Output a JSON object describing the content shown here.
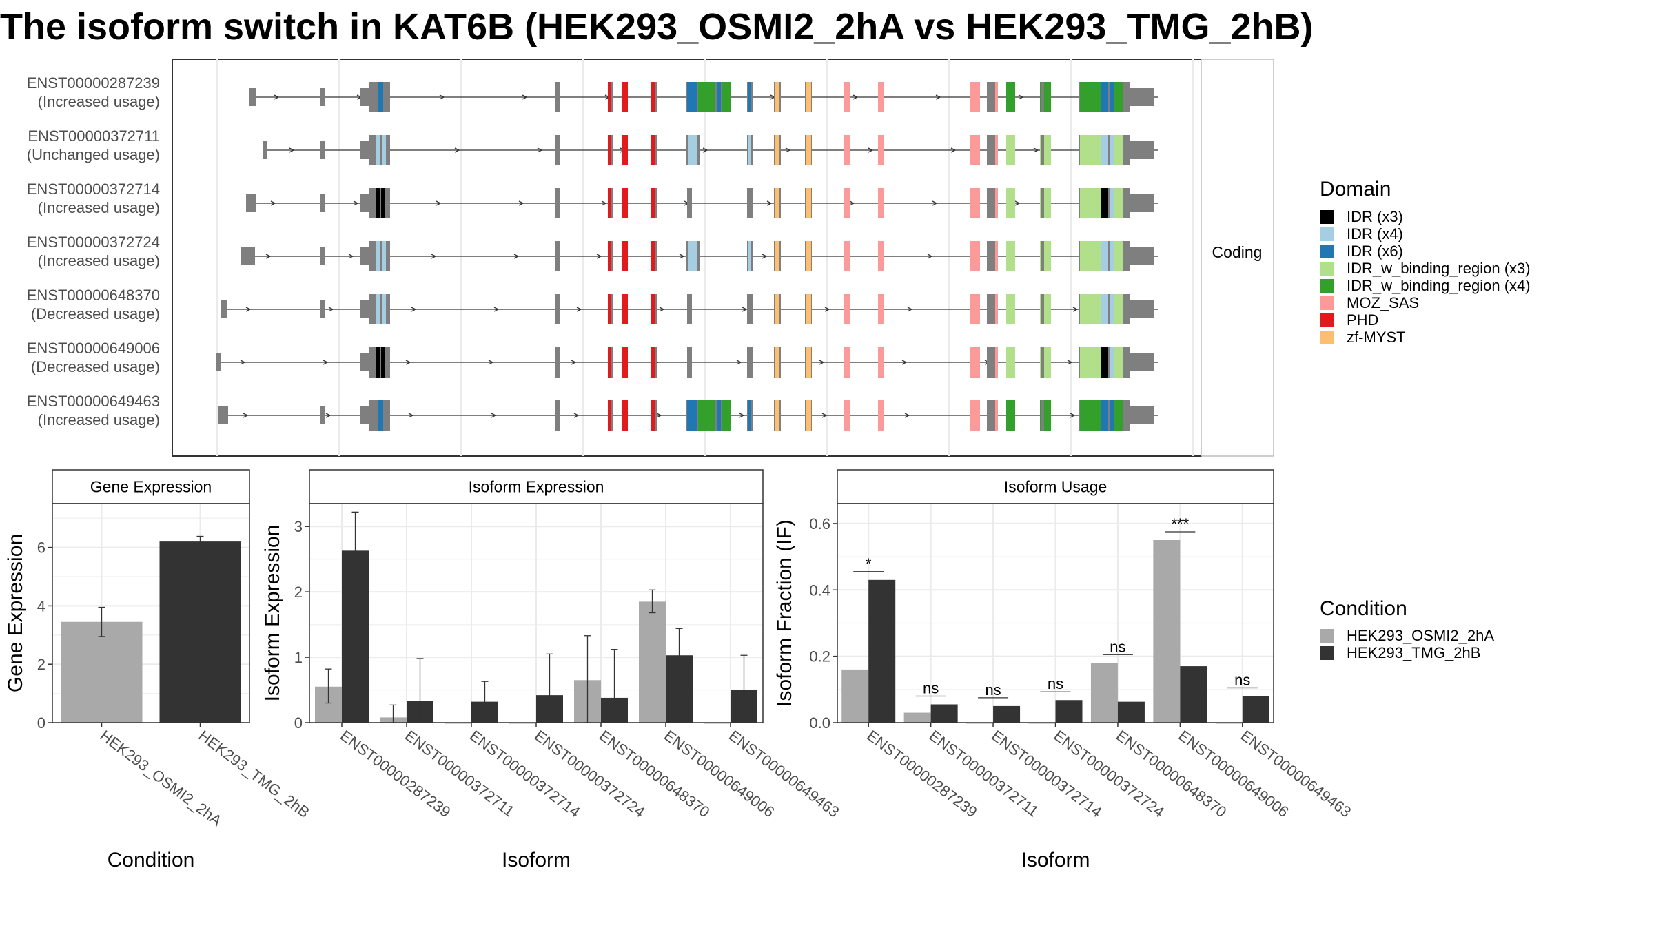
{
  "title": "The isoform switch in KAT6B (HEK293_OSMI2_2hA vs HEK293_TMG_2hB)",
  "structure": {
    "facet_label": "Coding",
    "isoforms": [
      {
        "id": "ENST00000287239",
        "status": "(Increased usage)"
      },
      {
        "id": "ENST00000372711",
        "status": "(Unchanged usage)"
      },
      {
        "id": "ENST00000372714",
        "status": "(Increased usage)"
      },
      {
        "id": "ENST00000372724",
        "status": "(Increased usage)"
      },
      {
        "id": "ENST00000648370",
        "status": "(Decreased usage)"
      },
      {
        "id": "ENST00000649006",
        "status": "(Decreased usage)"
      },
      {
        "id": "ENST00000649463",
        "status": "(Increased usage)"
      }
    ]
  },
  "domain_legend": {
    "title": "Domain",
    "items": [
      {
        "label": "IDR (x3)",
        "color": "#000000"
      },
      {
        "label": "IDR (x4)",
        "color": "#a6cee3"
      },
      {
        "label": "IDR (x6)",
        "color": "#1f78b4"
      },
      {
        "label": "IDR_w_binding_region (x3)",
        "color": "#b2df8a"
      },
      {
        "label": "IDR_w_binding_region (x4)",
        "color": "#33a02c"
      },
      {
        "label": "MOZ_SAS",
        "color": "#fb9a99"
      },
      {
        "label": "PHD",
        "color": "#e31a1c"
      },
      {
        "label": "zf-MYST",
        "color": "#fdbf6f"
      }
    ]
  },
  "condition_legend": {
    "title": "Condition",
    "items": [
      {
        "label": "HEK293_OSMI2_2hA",
        "color": "#a9a9a9"
      },
      {
        "label": "HEK293_TMG_2hB",
        "color": "#333333"
      }
    ]
  },
  "chart_data": [
    {
      "type": "bar",
      "title": "Gene Expression",
      "xlabel": "Condition",
      "ylabel": "Gene Expression",
      "ylim": [
        0,
        7.5
      ],
      "yticks": [
        0,
        2,
        4,
        6
      ],
      "categories": [
        "HEK293_OSMI2_2hA",
        "HEK293_TMG_2hB"
      ],
      "values": [
        3.45,
        6.2
      ],
      "error_low": [
        2.95,
        6.05
      ],
      "error_high": [
        3.95,
        6.38
      ]
    },
    {
      "type": "bar",
      "title": "Isoform Expression",
      "xlabel": "Isoform",
      "ylabel": "Isoform Expression",
      "ylim": [
        0,
        3.35
      ],
      "yticks": [
        0,
        1,
        2,
        3
      ],
      "categories": [
        "ENST00000287239",
        "ENST00000372711",
        "ENST00000372714",
        "ENST00000372724",
        "ENST00000648370",
        "ENST00000649006",
        "ENST00000649463"
      ],
      "series": [
        {
          "name": "HEK293_OSMI2_2hA",
          "values": [
            0.55,
            0.08,
            0,
            0,
            0.65,
            1.85,
            0
          ],
          "error_low": [
            0.3,
            0,
            0,
            0,
            0,
            1.68,
            0
          ],
          "error_high": [
            0.82,
            0.27,
            0,
            0,
            1.33,
            2.03,
            0
          ]
        },
        {
          "name": "HEK293_TMG_2hB",
          "values": [
            2.63,
            0.33,
            0.32,
            0.42,
            0.38,
            1.03,
            0.5
          ],
          "error_low": [
            2.05,
            0,
            0,
            0,
            0,
            0.62,
            0
          ],
          "error_high": [
            3.22,
            0.98,
            0.63,
            1.05,
            1.12,
            1.44,
            1.03
          ]
        }
      ]
    },
    {
      "type": "bar",
      "title": "Isoform Usage",
      "xlabel": "Isoform",
      "ylabel": "Isoform Fraction (IF)",
      "ylim": [
        0,
        0.66
      ],
      "yticks": [
        0.0,
        0.2,
        0.4,
        0.6
      ],
      "categories": [
        "ENST00000287239",
        "ENST00000372711",
        "ENST00000372714",
        "ENST00000372724",
        "ENST00000648370",
        "ENST00000649006",
        "ENST00000649463"
      ],
      "series": [
        {
          "name": "HEK293_OSMI2_2hA",
          "values": [
            0.16,
            0.03,
            0,
            0,
            0.18,
            0.55,
            0
          ]
        },
        {
          "name": "HEK293_TMG_2hB",
          "values": [
            0.43,
            0.055,
            0.05,
            0.068,
            0.063,
            0.17,
            0.08
          ]
        }
      ],
      "significance": [
        "*",
        "ns",
        "ns",
        "ns",
        "ns",
        "***",
        "ns"
      ]
    }
  ]
}
